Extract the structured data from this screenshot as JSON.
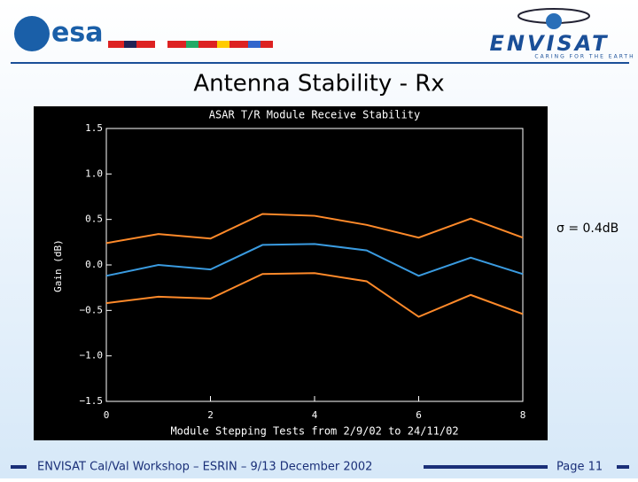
{
  "header": {
    "logo_left": "esa",
    "logo_right": "ENVISAT",
    "tagline": "CARING FOR THE EARTH"
  },
  "slide_title": "Antenna Stability - Rx",
  "annotation": "σ = 0.4dB",
  "footer": {
    "text": "ENVISAT Cal/Val Workshop – ESRIN – 9/13 December 2002",
    "page": "Page 11"
  },
  "chart_data": {
    "type": "line",
    "title": "ASAR T/R Module Receive Stability",
    "x_label": "Module Stepping Tests from 2/9/02 to 24/11/02",
    "y_label": "Gain (dB)",
    "x": [
      0,
      1,
      2,
      3,
      4,
      5,
      6,
      7,
      8
    ],
    "series": [
      {
        "color": "#ff8a2a",
        "values": [
          0.24,
          0.34,
          0.29,
          0.56,
          0.54,
          0.44,
          0.3,
          0.51,
          0.3
        ]
      },
      {
        "color": "#3a9be0",
        "values": [
          -0.12,
          0.0,
          -0.05,
          0.22,
          0.23,
          0.16,
          -0.12,
          0.08,
          -0.1
        ]
      },
      {
        "color": "#ff8a2a",
        "values": [
          -0.42,
          -0.35,
          -0.37,
          -0.1,
          -0.09,
          -0.18,
          -0.57,
          -0.33,
          -0.54
        ]
      }
    ],
    "xlim": [
      0,
      8
    ],
    "xticks": [
      0,
      2,
      4,
      6,
      8
    ],
    "ylim": [
      -1.5,
      1.5
    ],
    "yticks": [
      {
        "value": -1.5,
        "label": "−1.5"
      },
      {
        "value": -1.0,
        "label": "−1.0"
      },
      {
        "value": -0.5,
        "label": "−0.5"
      },
      {
        "value": 0,
        "label": "0.0"
      },
      0.5,
      {
        "value": 1.0,
        "label": "1.0"
      },
      1.5
    ]
  }
}
